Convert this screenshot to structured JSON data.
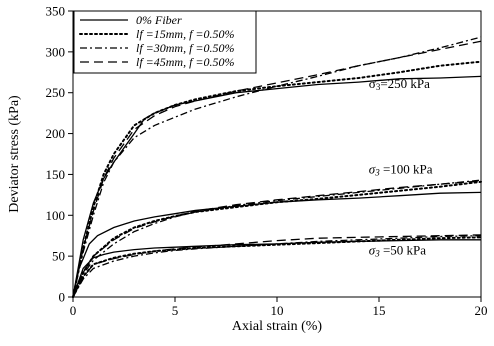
{
  "chart_data": {
    "type": "line",
    "title": "",
    "xlabel": "Axial strain (%)",
    "ylabel": "Deviator stress (kPa)",
    "xlim": [
      0,
      20
    ],
    "ylim": [
      0,
      350
    ],
    "xticks": [
      0,
      5,
      10,
      15,
      20
    ],
    "yticks": [
      0,
      50,
      100,
      150,
      200,
      250,
      300,
      350
    ],
    "grid": false,
    "legend_position": "top-left",
    "annotations": [
      {
        "id": "ann-250",
        "prefix": "σ",
        "sub": "3",
        "text": "=250 kPa",
        "italic": false,
        "x": 14.5,
        "y": 256
      },
      {
        "id": "ann-100",
        "prefix": "σ",
        "sub": "3",
        "text": " =100 kPa",
        "italic": true,
        "x": 14.5,
        "y": 151
      },
      {
        "id": "ann-50",
        "prefix": "σ",
        "sub": "3",
        "text": " =50 kPa",
        "italic": true,
        "x": 14.5,
        "y": 52
      }
    ],
    "series": [
      {
        "name": "0% Fiber",
        "style": "solid",
        "color": "#000000",
        "groups": [
          {
            "confining": "250",
            "x": [
              0,
              0.5,
              1,
              1.5,
              2,
              3,
              3.5,
              4,
              5,
              6,
              8,
              10,
              12,
              14,
              16,
              18,
              20
            ],
            "y": [
              0,
              70,
              115,
              145,
              165,
              200,
              218,
              225,
              235,
              240,
              250,
              255,
              260,
              263,
              267,
              268,
              270
            ]
          },
          {
            "confining": "100",
            "x": [
              0,
              0.3,
              0.8,
              1.2,
              2,
              3,
              4,
              5,
              6,
              8,
              10,
              12,
              14,
              16,
              18,
              20
            ],
            "y": [
              0,
              35,
              65,
              75,
              85,
              93,
              98,
              102,
              106,
              111,
              116,
              119,
              121,
              124,
              127,
              128
            ]
          },
          {
            "confining": "50",
            "x": [
              0,
              0.5,
              1,
              1.5,
              2,
              3,
              4,
              5,
              6,
              8,
              10,
              12,
              14,
              16,
              18,
              20
            ],
            "y": [
              0,
              35,
              48,
              52,
              55,
              58,
              60,
              61,
              62,
              64,
              65,
              67,
              68,
              69,
              70,
              70
            ]
          }
        ]
      },
      {
        "name": "lf =15mm, f =0.50%",
        "style": "dotted",
        "color": "#000000",
        "groups": [
          {
            "confining": "250",
            "x": [
              0,
              0.5,
              1,
              1.5,
              2,
              3,
              4,
              5,
              6,
              8,
              10,
              12,
              14,
              16,
              18,
              20
            ],
            "y": [
              0,
              60,
              110,
              150,
              175,
              210,
              225,
              235,
              242,
              252,
              258,
              263,
              268,
              275,
              283,
              288
            ]
          },
          {
            "confining": "100",
            "x": [
              0,
              0.5,
              1,
              2,
              3,
              4,
              5,
              6,
              8,
              10,
              12,
              14,
              16,
              18,
              20
            ],
            "y": [
              0,
              30,
              50,
              72,
              85,
              93,
              99,
              104,
              110,
              116,
              120,
              125,
              130,
              135,
              141
            ]
          },
          {
            "confining": "50",
            "x": [
              0,
              0.5,
              1,
              2,
              3,
              4,
              5,
              6,
              8,
              10,
              12,
              14,
              16,
              18,
              20
            ],
            "y": [
              0,
              25,
              40,
              48,
              53,
              56,
              58,
              60,
              62,
              64,
              66,
              68,
              70,
              72,
              73
            ]
          }
        ]
      },
      {
        "name": "lf =30mm, f =0.50%",
        "style": "dashdot",
        "color": "#000000",
        "groups": [
          {
            "confining": "250",
            "x": [
              0,
              0.5,
              1,
              1.5,
              2,
              3,
              4,
              5,
              6,
              8,
              10,
              12,
              14,
              16,
              18,
              20
            ],
            "y": [
              0,
              55,
              100,
              140,
              165,
              195,
              210,
              220,
              230,
              245,
              258,
              270,
              283,
              293,
              305,
              318
            ]
          },
          {
            "confining": "100",
            "x": [
              0,
              0.5,
              1,
              2,
              3,
              4,
              5,
              6,
              8,
              10,
              12,
              14,
              16,
              18,
              20
            ],
            "y": [
              0,
              28,
              45,
              65,
              80,
              90,
              98,
              104,
              112,
              118,
              123,
              128,
              133,
              138,
              143
            ]
          },
          {
            "confining": "50",
            "x": [
              0,
              0.5,
              1,
              2,
              3,
              4,
              5,
              6,
              8,
              10,
              12,
              14,
              16,
              18,
              20
            ],
            "y": [
              0,
              22,
              35,
              44,
              50,
              54,
              57,
              59,
              62,
              65,
              68,
              70,
              72,
              74,
              75
            ]
          }
        ]
      },
      {
        "name": "lf =45mm, f =0.50%",
        "style": "dashed",
        "color": "#000000",
        "groups": [
          {
            "confining": "250",
            "x": [
              0,
              0.5,
              1,
              1.5,
              2,
              3,
              4,
              5,
              6,
              8,
              10,
              12,
              14,
              16,
              18,
              20
            ],
            "y": [
              0,
              60,
              105,
              145,
              170,
              205,
              222,
              233,
              240,
              252,
              262,
              272,
              283,
              293,
              303,
              313
            ]
          },
          {
            "confining": "100",
            "x": [
              0,
              0.5,
              1,
              2,
              3,
              4,
              5,
              6,
              8,
              10,
              12,
              14,
              16,
              18,
              20
            ],
            "y": [
              0,
              30,
              50,
              70,
              84,
              92,
              99,
              105,
              113,
              119,
              124,
              129,
              134,
              138,
              142
            ]
          },
          {
            "confining": "50",
            "x": [
              0,
              0.5,
              1,
              2,
              3,
              4,
              5,
              6,
              8,
              10,
              12,
              14,
              16,
              18,
              20
            ],
            "y": [
              0,
              24,
              40,
              47,
              52,
              56,
              59,
              61,
              65,
              69,
              72,
              73,
              74,
              75,
              76
            ]
          }
        ]
      }
    ]
  }
}
